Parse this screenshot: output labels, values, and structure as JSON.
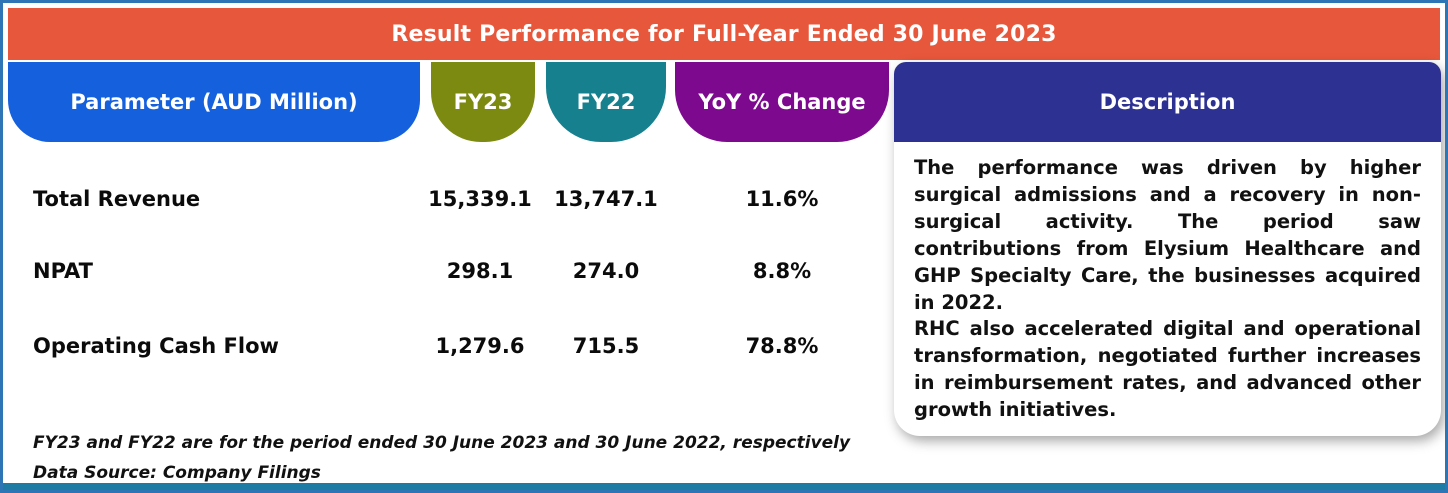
{
  "banner": {
    "title": "Result Performance for Full-Year Ended 30 June 2023"
  },
  "headers": {
    "parameter": "Parameter (AUD Million)",
    "fy23": "FY23",
    "fy22": "FY22",
    "yoy": "YoY % Change",
    "description": "Description"
  },
  "rows": [
    {
      "parameter": "Total Revenue",
      "fy23": "15,339.1",
      "fy22": "13,747.1",
      "yoy": "11.6%"
    },
    {
      "parameter": "NPAT",
      "fy23": "298.1",
      "fy22": "274.0",
      "yoy": "8.8%"
    },
    {
      "parameter": "Operating Cash Flow",
      "fy23": "1,279.6",
      "fy22": "715.5",
      "yoy": "78.8%"
    }
  ],
  "description": {
    "paragraph1": "The performance was driven by higher surgical admissions and a recovery in non-surgical activity. The period saw contributions from Elysium Healthcare and GHP Specialty Care, the businesses acquired in 2022.",
    "paragraph2": "RHC also accelerated digital and operational transformation, negotiated further increases in reimbursement rates, and advanced other growth initiatives."
  },
  "footnotes": {
    "period_note": "FY23 and FY22 are for the period ended 30 June 2023 and 30 June 2022, respectively",
    "source_note": "Data Source: Company Filings"
  },
  "colors": {
    "banner": "#E7573B",
    "parameter_header": "#1560DD",
    "fy23_header": "#7C8A12",
    "fy22_header": "#17808E",
    "yoy_header": "#7D0A8E",
    "description_header": "#2D3192",
    "outer_border": "#2E75B6",
    "bottom_strip": "#1E7BA3"
  },
  "chart_data": {
    "type": "table",
    "title": "Result Performance for Full-Year Ended 30 June 2023",
    "columns": [
      "Parameter (AUD Million)",
      "FY23",
      "FY22",
      "YoY % Change",
      "Description"
    ],
    "rows": [
      [
        "Total Revenue",
        15339.1,
        13747.1,
        "11.6%"
      ],
      [
        "NPAT",
        298.1,
        274.0,
        "8.8%"
      ],
      [
        "Operating Cash Flow",
        1279.6,
        715.5,
        "78.8%"
      ]
    ],
    "units": "AUD Million",
    "notes": [
      "FY23 and FY22 are for the period ended 30 June 2023 and 30 June 2022, respectively",
      "Data Source: Company Filings"
    ]
  }
}
